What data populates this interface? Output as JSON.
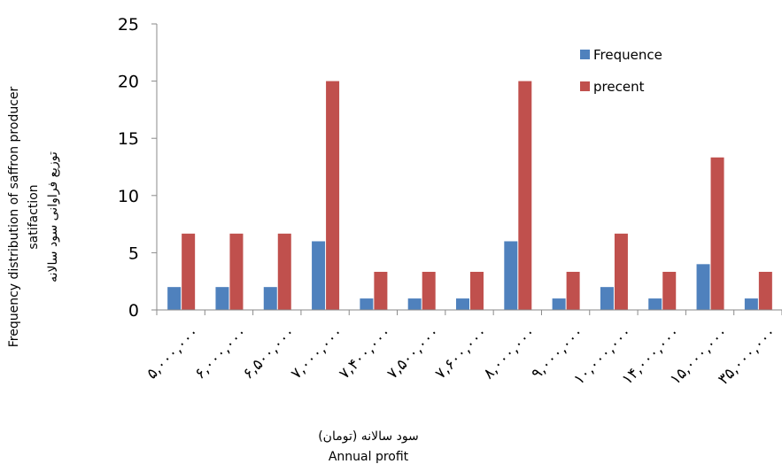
{
  "chart_data": {
    "type": "bar",
    "categories": [
      "۵,۰۰۰,۰۰۰",
      "۶,۰۰۰,۰۰۰",
      "۶,۵۰۰,۰۰۰",
      "۷,۰۰۰,۰۰۰",
      "۷,۴۰۰,۰۰۰",
      "۷,۵۰۰,۰۰۰",
      "۷,۶۰۰,۰۰۰",
      "۸,۰۰۰,۰۰۰",
      "۹,۰۰۰,۰۰۰",
      "۱۰,۰۰۰,۰۰۰",
      "۱۴,۰۰۰,۰۰۰",
      "۱۵,۰۰۰,۰۰۰",
      "۳۵,۰۰۰,۰۰۰"
    ],
    "series": [
      {
        "name": "Frequence",
        "color": "#4f81bd",
        "values": [
          2,
          2,
          2,
          6,
          1,
          1,
          1,
          6,
          1,
          2,
          1,
          4,
          1
        ]
      },
      {
        "name": "precent",
        "color": "#c0504d",
        "values": [
          6.67,
          6.67,
          6.67,
          20,
          3.33,
          3.33,
          3.33,
          20,
          3.33,
          6.67,
          3.33,
          13.33,
          3.33
        ]
      }
    ],
    "ylim": [
      0,
      25
    ],
    "yticks": [
      0,
      5,
      10,
      15,
      20,
      25
    ],
    "ylabel_lines": [
      "Frequency distribution of saffron producer",
      "satifaction",
      "توزیع فراوانی سود سالانه"
    ],
    "xlabel_lines": [
      "سود سالانه (تومان)",
      "Annual profit"
    ],
    "legend_position": "top-right",
    "grid": false
  }
}
